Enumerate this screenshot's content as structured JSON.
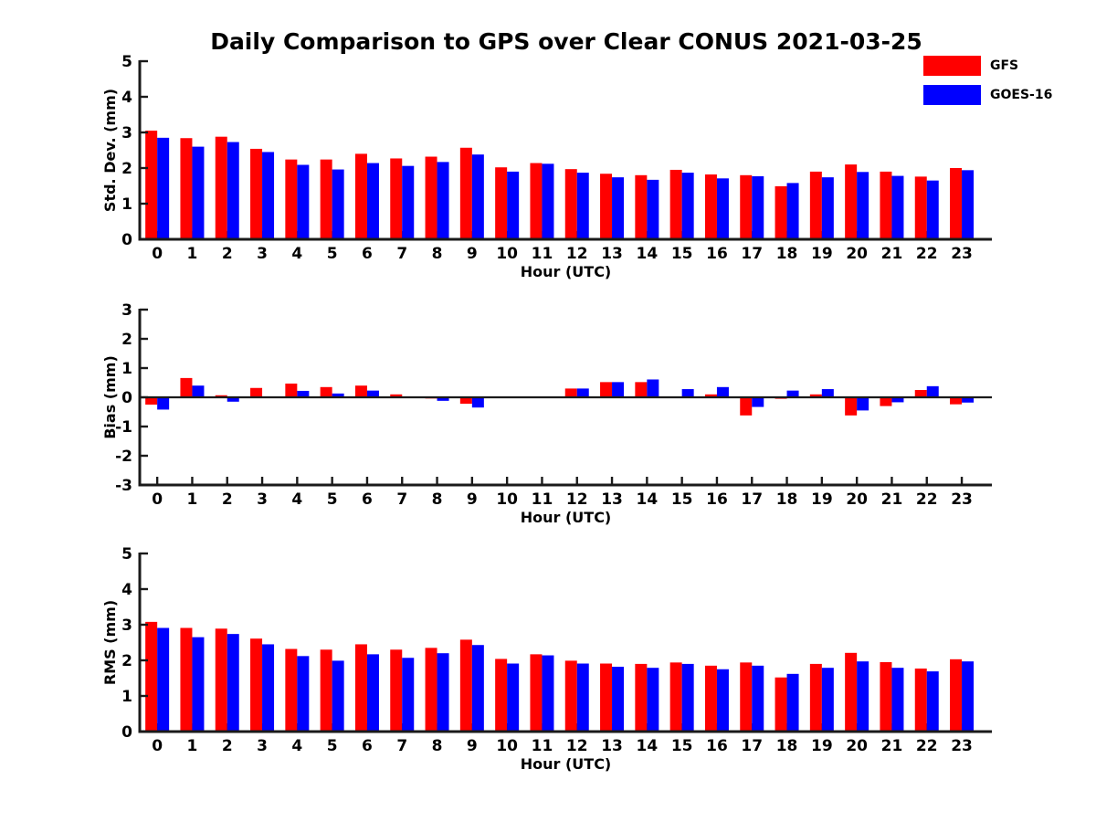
{
  "title": "Daily Comparison to GPS over Clear CONUS 2021-03-25",
  "legend": {
    "entries": [
      {
        "label": "GFS",
        "color": "#ff0000"
      },
      {
        "label": "GOES-16",
        "color": "#0000ff"
      }
    ]
  },
  "colors": {
    "axis": "#1a1a1a",
    "text": "#000000",
    "gfs": "#ff0000",
    "goes16": "#0000ff"
  },
  "chart_data": [
    {
      "type": "bar",
      "id": "std-dev",
      "title": "",
      "ylabel": "Std. Dev. (mm)",
      "xlabel": "Hour (UTC)",
      "ylim": [
        0,
        5
      ],
      "yticks": [
        0,
        1,
        2,
        3,
        4,
        5
      ],
      "grid": false,
      "legend_position": "top-right",
      "categories": [
        "0",
        "1",
        "2",
        "3",
        "4",
        "5",
        "6",
        "7",
        "8",
        "9",
        "10",
        "11",
        "12",
        "13",
        "14",
        "15",
        "16",
        "17",
        "18",
        "19",
        "20",
        "21",
        "22",
        "23"
      ],
      "series": [
        {
          "name": "GFS",
          "color": "#ff0000",
          "values": [
            3.05,
            2.84,
            2.88,
            2.54,
            2.24,
            2.24,
            2.4,
            2.27,
            2.32,
            2.57,
            2.02,
            2.14,
            1.97,
            1.84,
            1.8,
            1.95,
            1.82,
            1.8,
            1.49,
            1.9,
            2.1,
            1.9,
            1.76,
            2.0
          ]
        },
        {
          "name": "GOES-16",
          "color": "#0000ff",
          "values": [
            2.85,
            2.6,
            2.73,
            2.45,
            2.09,
            1.96,
            2.14,
            2.06,
            2.17,
            2.38,
            1.9,
            2.12,
            1.87,
            1.74,
            1.67,
            1.87,
            1.71,
            1.77,
            1.58,
            1.74,
            1.89,
            1.78,
            1.65,
            1.94
          ]
        }
      ]
    },
    {
      "type": "bar",
      "id": "bias",
      "title": "",
      "ylabel": "Bias (mm)",
      "xlabel": "Hour (UTC)",
      "ylim": [
        -3,
        3
      ],
      "yticks": [
        -3,
        -2,
        -1,
        0,
        1,
        2,
        3
      ],
      "grid": false,
      "zero_line": true,
      "categories": [
        "0",
        "1",
        "2",
        "3",
        "4",
        "5",
        "6",
        "7",
        "8",
        "9",
        "10",
        "11",
        "12",
        "13",
        "14",
        "15",
        "16",
        "17",
        "18",
        "19",
        "20",
        "21",
        "22",
        "23"
      ],
      "series": [
        {
          "name": "GFS",
          "color": "#ff0000",
          "values": [
            -0.25,
            0.66,
            0.07,
            0.32,
            0.47,
            0.35,
            0.4,
            0.1,
            -0.04,
            -0.22,
            0.0,
            -0.03,
            0.3,
            0.52,
            0.52,
            0.02,
            0.1,
            -0.62,
            -0.05,
            0.1,
            -0.62,
            -0.3,
            0.25,
            -0.24
          ]
        },
        {
          "name": "GOES-16",
          "color": "#0000ff",
          "values": [
            -0.42,
            0.4,
            -0.15,
            0.03,
            0.22,
            0.13,
            0.23,
            0.02,
            -0.12,
            -0.35,
            0.0,
            0.03,
            0.3,
            0.52,
            0.61,
            0.28,
            0.35,
            -0.33,
            0.23,
            0.28,
            -0.45,
            -0.17,
            0.38,
            -0.18
          ]
        }
      ]
    },
    {
      "type": "bar",
      "id": "rms",
      "title": "",
      "ylabel": "RMS (mm)",
      "xlabel": "Hour (UTC)",
      "ylim": [
        0,
        5
      ],
      "yticks": [
        0,
        1,
        2,
        3,
        4,
        5
      ],
      "grid": false,
      "categories": [
        "0",
        "1",
        "2",
        "3",
        "4",
        "5",
        "6",
        "7",
        "8",
        "9",
        "10",
        "11",
        "12",
        "13",
        "14",
        "15",
        "16",
        "17",
        "18",
        "19",
        "20",
        "21",
        "22",
        "23"
      ],
      "series": [
        {
          "name": "GFS",
          "color": "#ff0000",
          "values": [
            3.08,
            2.91,
            2.89,
            2.61,
            2.32,
            2.3,
            2.45,
            2.3,
            2.35,
            2.58,
            2.04,
            2.17,
            1.99,
            1.91,
            1.9,
            1.94,
            1.85,
            1.94,
            1.52,
            1.9,
            2.21,
            1.95,
            1.77,
            2.03
          ]
        },
        {
          "name": "GOES-16",
          "color": "#0000ff",
          "values": [
            2.91,
            2.65,
            2.74,
            2.45,
            2.12,
            1.99,
            2.17,
            2.07,
            2.2,
            2.43,
            1.91,
            2.14,
            1.91,
            1.82,
            1.79,
            1.9,
            1.75,
            1.85,
            1.62,
            1.79,
            1.97,
            1.79,
            1.69,
            1.97
          ]
        }
      ]
    }
  ]
}
